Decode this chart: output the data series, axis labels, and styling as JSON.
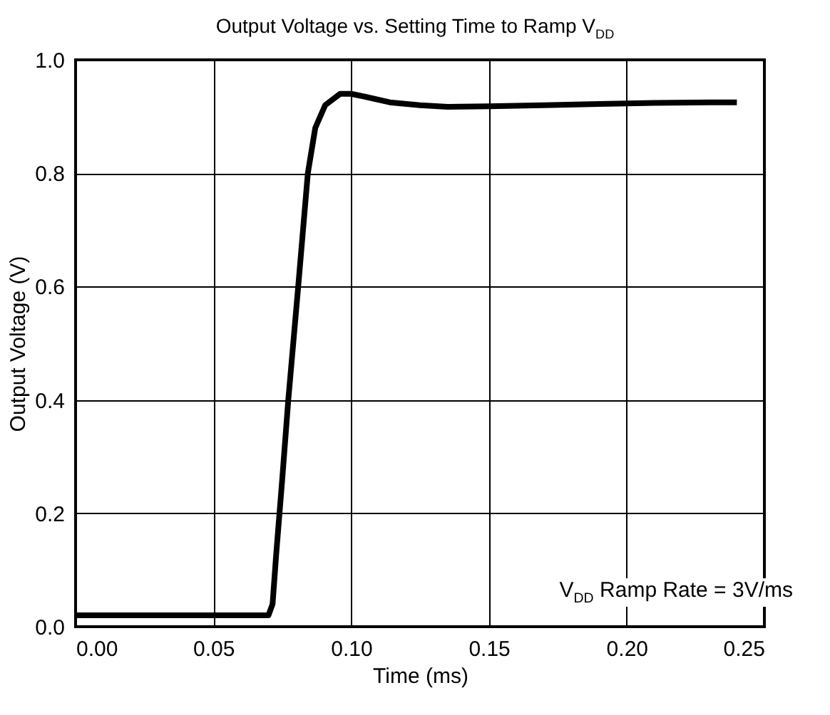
{
  "chart_data": {
    "type": "line",
    "title": "Output Voltage vs. Setting Time to Ramp V$_{DD}$",
    "xlabel": "Time (ms)",
    "ylabel": "Output Voltage (V)",
    "x": [
      0,
      0.02,
      0.04,
      0.06,
      0.07,
      0.0715,
      0.0728,
      0.075,
      0.0772,
      0.0808,
      0.0843,
      0.087,
      0.0906,
      0.096,
      0.1,
      0.105,
      0.114,
      0.125,
      0.135,
      0.15,
      0.17,
      0.19,
      0.21,
      0.23,
      0.24
    ],
    "series": [
      {
        "color": "#000000",
        "values": [
          0.02,
          0.02,
          0.02,
          0.02,
          0.02,
          0.04,
          0.127,
          0.26,
          0.4,
          0.6,
          0.8,
          0.88,
          0.92,
          0.94,
          0.94,
          0.935,
          0.925,
          0.92,
          0.917,
          0.918,
          0.92,
          0.922,
          0.924,
          0.925,
          0.925
        ]
      }
    ],
    "xlim": [
      0,
      0.25
    ],
    "ylim": [
      0,
      1
    ],
    "xticks": [
      {
        "value": 0,
        "label": "0.00"
      },
      0.05,
      {
        "value": 0.1,
        "label": "0.10"
      },
      0.15,
      {
        "value": 0.2,
        "label": "0.20"
      },
      0.25
    ],
    "yticks": [
      {
        "value": 0,
        "label": "0.0"
      },
      0.2,
      0.4,
      0.6,
      0.8,
      {
        "value": 1,
        "label": "1.0"
      }
    ],
    "grid": true,
    "annotations": [
      "V$_{DD}$ Ramp Rate = 3V/ms"
    ]
  }
}
